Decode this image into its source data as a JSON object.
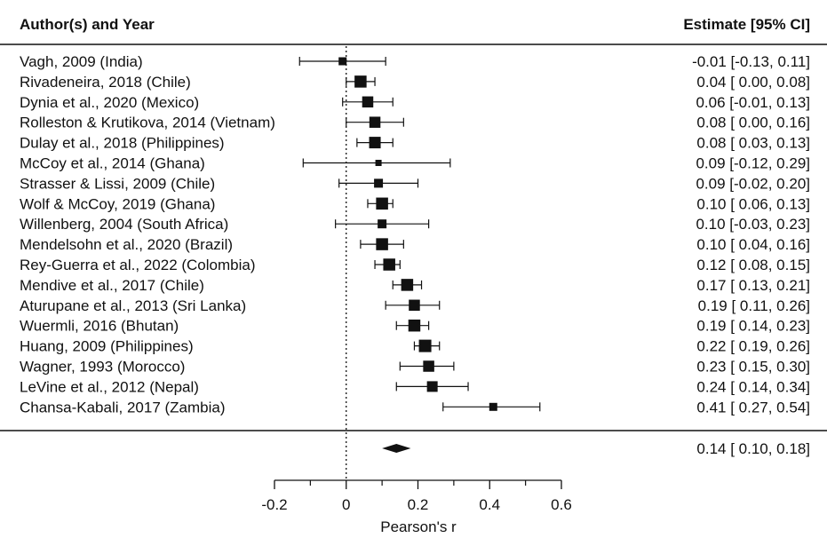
{
  "chart_data": {
    "type": "forest",
    "header_left": "Author(s) and Year",
    "header_right": "Estimate [95% CI]",
    "xlabel": "Pearson's r",
    "xlim": [
      -0.2,
      0.6
    ],
    "xticks": [
      "-0.2",
      "0",
      "0.2",
      "0.4",
      "0.6"
    ],
    "xtick_values": [
      -0.2,
      0,
      0.2,
      0.4,
      0.6
    ],
    "reference_line": 0,
    "studies": [
      {
        "label": "Vagh, 2009 (India)",
        "est": -0.01,
        "lo": -0.13,
        "hi": 0.11,
        "text": "-0.01 [-0.13, 0.11]",
        "weight": 0.5
      },
      {
        "label": "Rivadeneira, 2018 (Chile)",
        "est": 0.04,
        "lo": 0.0,
        "hi": 0.08,
        "text": "0.04 [ 0.00, 0.08]",
        "weight": 0.95
      },
      {
        "label": "Dynia et al., 2020 (Mexico)",
        "est": 0.06,
        "lo": -0.01,
        "hi": 0.13,
        "text": "0.06 [-0.01, 0.13]",
        "weight": 0.85
      },
      {
        "label": "Rolleston & Krutikova, 2014 (Vietnam)",
        "est": 0.08,
        "lo": 0.0,
        "hi": 0.16,
        "text": "0.08 [ 0.00, 0.16]",
        "weight": 0.85
      },
      {
        "label": "Dulay et al., 2018 (Philippines)",
        "est": 0.08,
        "lo": 0.03,
        "hi": 0.13,
        "text": "0.08 [ 0.03, 0.13]",
        "weight": 0.9
      },
      {
        "label": "McCoy et al., 2014 (Ghana)",
        "est": 0.09,
        "lo": -0.12,
        "hi": 0.29,
        "text": "0.09 [-0.12, 0.29]",
        "weight": 0.3
      },
      {
        "label": "Strasser & Lissi, 2009 (Chile)",
        "est": 0.09,
        "lo": -0.02,
        "hi": 0.2,
        "text": "0.09 [-0.02, 0.20]",
        "weight": 0.6
      },
      {
        "label": "Wolf & McCoy, 2019 (Ghana)",
        "est": 0.1,
        "lo": 0.06,
        "hi": 0.13,
        "text": "0.10 [ 0.06, 0.13]",
        "weight": 0.95
      },
      {
        "label": "Willenberg, 2004 (South Africa)",
        "est": 0.1,
        "lo": -0.03,
        "hi": 0.23,
        "text": "0.10 [-0.03, 0.23]",
        "weight": 0.6
      },
      {
        "label": "Mendelsohn et al., 2020 (Brazil)",
        "est": 0.1,
        "lo": 0.04,
        "hi": 0.16,
        "text": "0.10 [ 0.04, 0.16]",
        "weight": 0.95
      },
      {
        "label": "Rey-Guerra et al., 2022 (Colombia)",
        "est": 0.12,
        "lo": 0.08,
        "hi": 0.15,
        "text": "0.12 [ 0.08, 0.15]",
        "weight": 0.95
      },
      {
        "label": "Mendive et al., 2017 (Chile)",
        "est": 0.17,
        "lo": 0.13,
        "hi": 0.21,
        "text": "0.17 [ 0.13, 0.21]",
        "weight": 0.95
      },
      {
        "label": "Aturupane et al., 2013 (Sri Lanka)",
        "est": 0.19,
        "lo": 0.11,
        "hi": 0.26,
        "text": "0.19 [ 0.11, 0.26]",
        "weight": 0.85
      },
      {
        "label": "Wuermli, 2016 (Bhutan)",
        "est": 0.19,
        "lo": 0.14,
        "hi": 0.23,
        "text": "0.19 [ 0.14, 0.23]",
        "weight": 0.95
      },
      {
        "label": "Huang, 2009 (Philippines)",
        "est": 0.22,
        "lo": 0.19,
        "hi": 0.26,
        "text": "0.22 [ 0.19, 0.26]",
        "weight": 1.0
      },
      {
        "label": "Wagner, 1993 (Morocco)",
        "est": 0.23,
        "lo": 0.15,
        "hi": 0.3,
        "text": "0.23 [ 0.15, 0.30]",
        "weight": 0.85
      },
      {
        "label": "LeVine et al., 2012 (Nepal)",
        "est": 0.24,
        "lo": 0.14,
        "hi": 0.34,
        "text": "0.24 [ 0.14, 0.34]",
        "weight": 0.8
      },
      {
        "label": "Chansa-Kabali, 2017 (Zambia)",
        "est": 0.41,
        "lo": 0.27,
        "hi": 0.54,
        "text": "0.41 [ 0.27, 0.54]",
        "weight": 0.5
      }
    ],
    "summary": {
      "label": "",
      "est": 0.14,
      "lo": 0.1,
      "hi": 0.18,
      "text": "0.14 [ 0.10, 0.18]"
    }
  }
}
